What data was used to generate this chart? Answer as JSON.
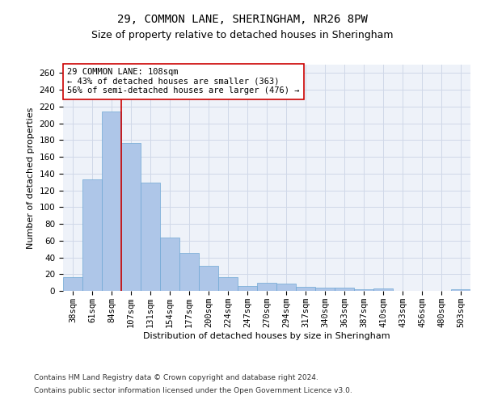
{
  "title_line1": "29, COMMON LANE, SHERINGHAM, NR26 8PW",
  "title_line2": "Size of property relative to detached houses in Sheringham",
  "xlabel": "Distribution of detached houses by size in Sheringham",
  "ylabel": "Number of detached properties",
  "categories": [
    "38sqm",
    "61sqm",
    "84sqm",
    "107sqm",
    "131sqm",
    "154sqm",
    "177sqm",
    "200sqm",
    "224sqm",
    "247sqm",
    "270sqm",
    "294sqm",
    "317sqm",
    "340sqm",
    "363sqm",
    "387sqm",
    "410sqm",
    "433sqm",
    "456sqm",
    "480sqm",
    "503sqm"
  ],
  "values": [
    16,
    133,
    214,
    176,
    129,
    64,
    45,
    30,
    16,
    6,
    10,
    9,
    5,
    4,
    4,
    2,
    3,
    0,
    0,
    0,
    2
  ],
  "bar_color": "#aec6e8",
  "bar_edge_color": "#6fa8d4",
  "bar_width": 1.0,
  "vline_x": 2.5,
  "vline_color": "#cc0000",
  "annotation_text": "29 COMMON LANE: 108sqm\n← 43% of detached houses are smaller (363)\n56% of semi-detached houses are larger (476) →",
  "annotation_box_color": "#ffffff",
  "annotation_box_edge": "#cc0000",
  "ylim": [
    0,
    270
  ],
  "yticks": [
    0,
    20,
    40,
    60,
    80,
    100,
    120,
    140,
    160,
    180,
    200,
    220,
    240,
    260
  ],
  "grid_color": "#d0d8e8",
  "background_color": "#eef2f9",
  "footer_line1": "Contains HM Land Registry data © Crown copyright and database right 2024.",
  "footer_line2": "Contains public sector information licensed under the Open Government Licence v3.0.",
  "title_fontsize": 10,
  "subtitle_fontsize": 9,
  "axis_label_fontsize": 8,
  "tick_fontsize": 7.5,
  "annotation_fontsize": 7.5,
  "footer_fontsize": 6.5
}
